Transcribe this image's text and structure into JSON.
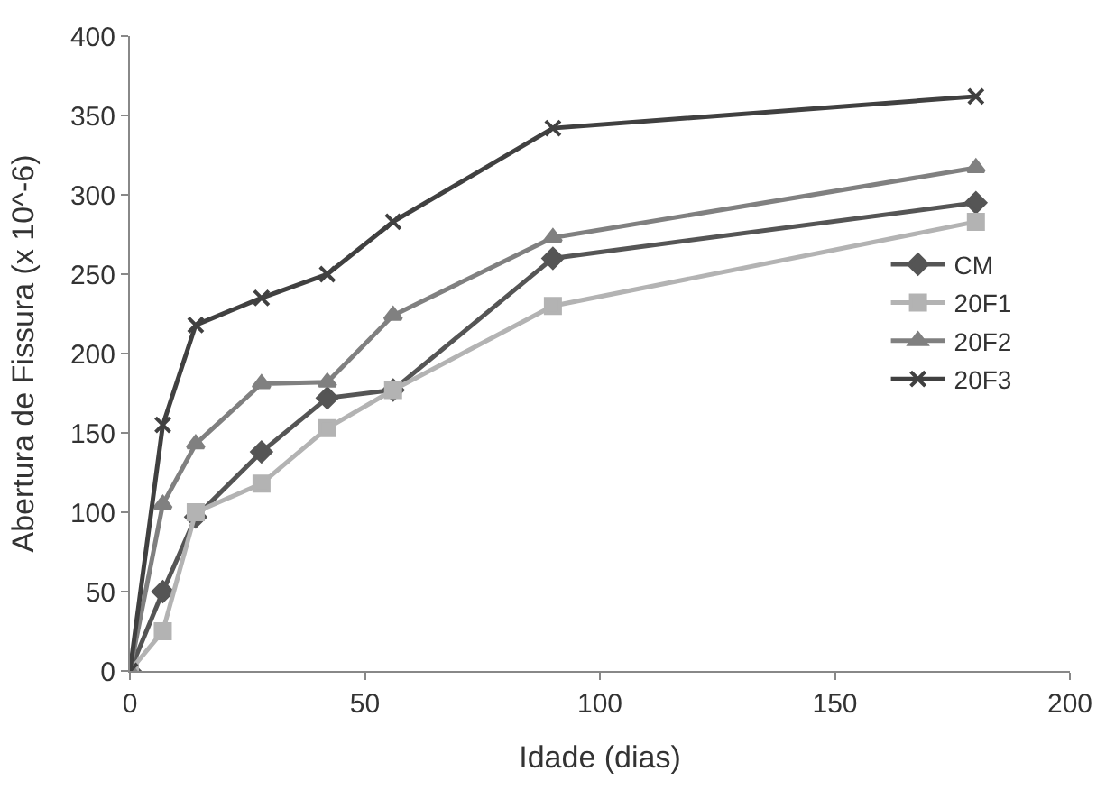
{
  "chart_data": {
    "type": "line",
    "xlabel": "Idade (dias)",
    "ylabel": "Abertura de Fissura (x 10^-6)",
    "x": [
      0,
      7,
      14,
      28,
      42,
      56,
      90,
      180
    ],
    "series": [
      {
        "name": "CM",
        "color": "#555555",
        "marker": "diamond",
        "values": [
          0,
          50,
          97,
          138,
          172,
          177,
          260,
          295
        ]
      },
      {
        "name": "20F1",
        "color": "#b3b3b3",
        "marker": "square",
        "values": [
          0,
          25,
          100,
          118,
          153,
          177,
          230,
          283
        ]
      },
      {
        "name": "20F2",
        "color": "#808080",
        "marker": "triangle",
        "values": [
          0,
          105,
          143,
          181,
          182,
          224,
          273,
          317
        ]
      },
      {
        "name": "20F3",
        "color": "#404040",
        "marker": "cross",
        "values": [
          0,
          155,
          218,
          235,
          250,
          283,
          342,
          362
        ]
      }
    ],
    "xlim": [
      0,
      200
    ],
    "xticks": [
      0,
      50,
      100,
      150,
      200
    ],
    "ylim": [
      0,
      400
    ],
    "yticks": [
      0,
      50,
      100,
      150,
      200,
      250,
      300,
      350,
      400
    ],
    "legend": "right",
    "line_style": "solid"
  }
}
